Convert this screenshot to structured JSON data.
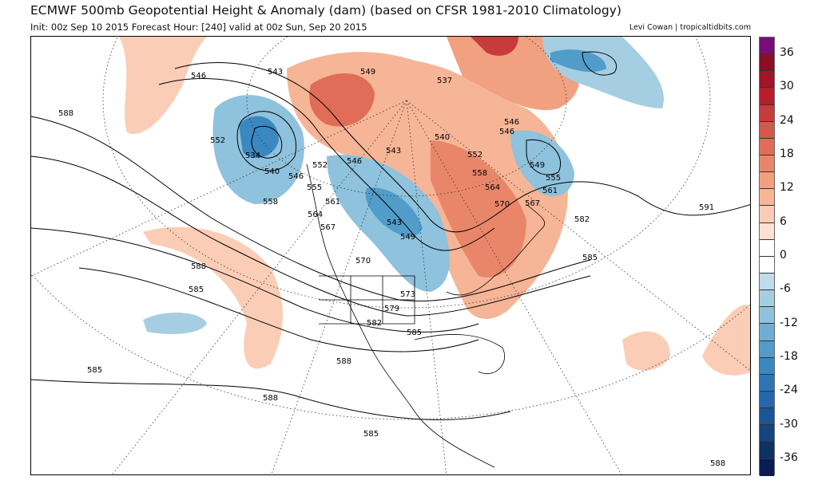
{
  "header": {
    "title": "ECMWF 500mb Geopotential Height & Anomaly (dam) (based on CFSR 1981-2010 Climatology)",
    "subtitle": "Init: 00z Sep 10 2015   Forecast Hour: [240]   valid at 00z Sun, Sep 20 2015",
    "credit": "Levi Cowan | tropicaltidbits.com"
  },
  "colorbar": {
    "ticks": [
      "36",
      "30",
      "24",
      "18",
      "12",
      "6",
      "0",
      "-6",
      "-12",
      "-18",
      "-24",
      "-30",
      "-36"
    ],
    "tick_values": [
      36,
      30,
      24,
      18,
      12,
      6,
      0,
      -6,
      -12,
      -18,
      -24,
      -30,
      -36
    ],
    "range": [
      -39,
      39
    ],
    "step": 3,
    "colors": [
      "#7b0b79",
      "#8a0f26",
      "#a2142c",
      "#b81d2d",
      "#c83b3c",
      "#d45849",
      "#e06d57",
      "#e9866a",
      "#f1a17f",
      "#f7b698",
      "#fbcdb6",
      "#fde1d3",
      "#ffffff",
      "#ffffff",
      "#c0dbea",
      "#a6cee3",
      "#8fc2dc",
      "#70add3",
      "#529cca",
      "#3a88c1",
      "#2c75b6",
      "#2467ad",
      "#1c5594",
      "#134580",
      "#0c3264",
      "#0b1b56"
    ]
  },
  "map": {
    "contour_labels": [
      "546",
      "543",
      "549",
      "537",
      "588",
      "552",
      "540",
      "543",
      "546",
      "534",
      "540",
      "546",
      "552",
      "555",
      "558",
      "561",
      "564",
      "567",
      "552",
      "558",
      "564",
      "570",
      "567",
      "561",
      "555",
      "549",
      "546",
      "582",
      "591",
      "543",
      "549",
      "570",
      "573",
      "579",
      "582",
      "585",
      "588",
      "585",
      "585",
      "588",
      "588",
      "585",
      "588",
      "585",
      "546"
    ]
  }
}
